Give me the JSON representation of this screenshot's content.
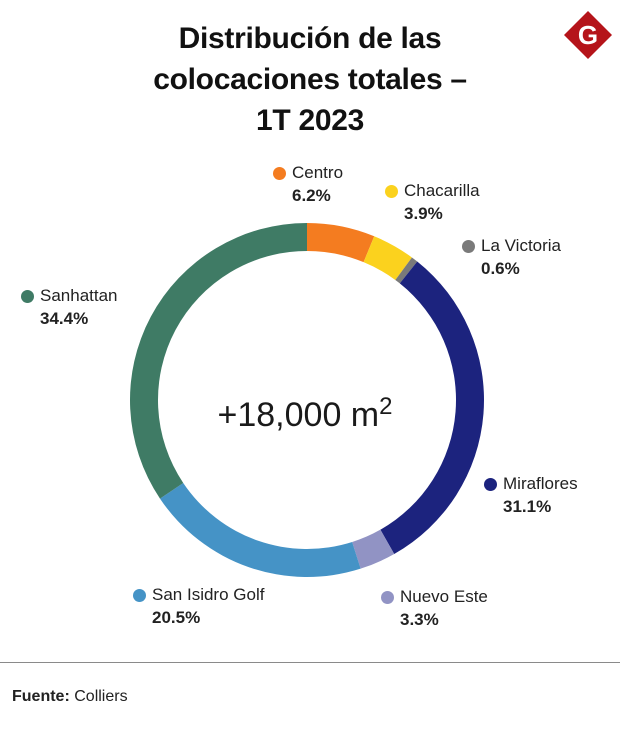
{
  "title": "Distribución de las colocaciones totales – 1T 2023",
  "title_lines": [
    "Distribución de las",
    "colocaciones totales –",
    "1T 2023"
  ],
  "center_label": {
    "value": "+18,000 m",
    "unit_superscript": "2"
  },
  "source": {
    "label": "Fuente:",
    "value": "Colliers"
  },
  "logo": {
    "letter": "G",
    "color": "#b5141a"
  },
  "chart_data": {
    "type": "pie",
    "style": "donut",
    "title": "Distribución de las colocaciones totales – 1T 2023",
    "center_text": "+18,000 m2",
    "start_angle": "top, clockwise",
    "categories": [
      "Centro",
      "Chacarilla",
      "La Victoria",
      "Miraflores",
      "Nuevo Este",
      "San Isidro Golf",
      "Sanhattan"
    ],
    "values": [
      6.2,
      3.9,
      0.6,
      31.1,
      3.3,
      20.5,
      34.4
    ],
    "labels": [
      "6.2%",
      "3.9%",
      "0.6%",
      "31.1%",
      "3.3%",
      "20.5%",
      "34.4%"
    ],
    "colors": [
      "#f47c20",
      "#fbd21e",
      "#7a7a7a",
      "#1c237e",
      "#9193c4",
      "#4593c6",
      "#3f7b65"
    ]
  }
}
